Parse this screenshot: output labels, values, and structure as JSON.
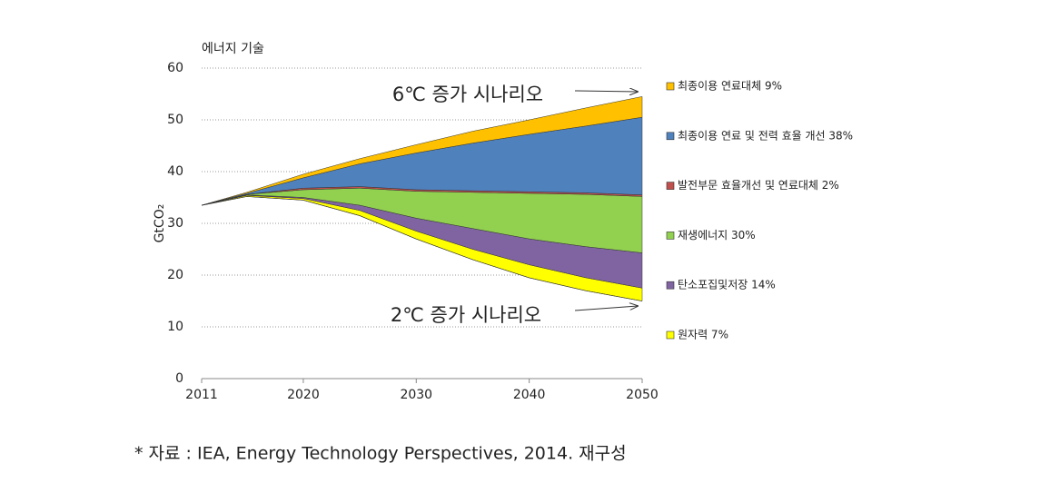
{
  "chart_data": {
    "type": "stacked_area",
    "axis_title": "에너지 기술",
    "y_label": "GtCO₂",
    "x": [
      2011,
      2015,
      2020,
      2025,
      2030,
      2035,
      2040,
      2045,
      2050
    ],
    "xlim": [
      2011,
      2050
    ],
    "xticks": [
      2011,
      2020,
      2030,
      2040,
      2050
    ],
    "ylim": [
      0,
      60
    ],
    "yticks": [
      0,
      10,
      20,
      30,
      40,
      50,
      60
    ],
    "grid": true,
    "series": [
      {
        "name": "2℃ 증가 시나리오",
        "style": "line",
        "legend": false,
        "color": "#000000",
        "values": [
          33.5,
          35.2,
          34.5,
          31.5,
          27,
          23,
          19.5,
          17,
          15
        ]
      },
      {
        "name": "원자력 7%",
        "color": "#ffff00",
        "values": [
          0,
          0.2,
          0.3,
          1,
          1.5,
          2,
          2.5,
          2.5,
          2.5
        ]
      },
      {
        "name": "탄소포집및저장 14%",
        "color": "#8064a2",
        "values": [
          0,
          0.1,
          0.2,
          1,
          2.5,
          4,
          5,
          6,
          6.8
        ]
      },
      {
        "name": "재생에너지 30%",
        "color": "#92d050",
        "values": [
          0,
          0.1,
          1.5,
          3.3,
          5.2,
          7,
          8.8,
          10.1,
          10.9
        ]
      },
      {
        "name": "발전부문 효율개선 및 연료대체 2%",
        "color": "#c0504d",
        "values": [
          0,
          0,
          0.3,
          0.3,
          0.3,
          0.3,
          0.3,
          0.3,
          0.3
        ]
      },
      {
        "name": "최종이용 연료 및 전력 효율 개선 38%",
        "color": "#4f81bd",
        "values": [
          0,
          0.2,
          2,
          4.4,
          7.1,
          9.2,
          11.1,
          12.9,
          15
        ]
      },
      {
        "name": "최종이용 연료대체 9%",
        "color": "#ffc000",
        "values": [
          0,
          0.2,
          0.7,
          1,
          1.6,
          2.3,
          2.8,
          3.5,
          4
        ]
      }
    ],
    "annotations": [
      "6℃ 증가 시나리오"
    ],
    "source": "* 자료 : IEA, Energy Technology Perspectives, 2014. 재구성"
  }
}
